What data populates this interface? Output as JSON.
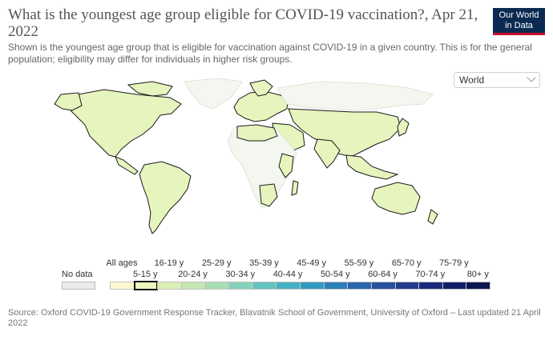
{
  "header": {
    "title": "What is the youngest age group eligible for COVID-19 vaccination?, Apr 21, 2022",
    "subtitle": "Shown is the youngest age group that is eligible for vaccination against COVID-19 in a given country. This is for the general population; eligibility may differ for individuals in higher risk groups."
  },
  "logo": {
    "line1": "Our World",
    "line2": "in Data"
  },
  "region_select": {
    "value": "World",
    "icon": "chevron-down-icon"
  },
  "legend": {
    "no_data": "No data",
    "items": [
      {
        "label": "All ages",
        "color": "#fbf8d0"
      },
      {
        "label": "5-15 y",
        "color": "#ebf5bc",
        "highlighted": true
      },
      {
        "label": "16-19 y",
        "color": "#dcefb4"
      },
      {
        "label": "20-24 y",
        "color": "#c6e7b3"
      },
      {
        "label": "25-29 y",
        "color": "#a9ddb3"
      },
      {
        "label": "30-34 y",
        "color": "#86d1ba"
      },
      {
        "label": "35-39 y",
        "color": "#63c3be"
      },
      {
        "label": "40-44 y",
        "color": "#45b1c2"
      },
      {
        "label": "45-49 y",
        "color": "#3299c0"
      },
      {
        "label": "50-54 y",
        "color": "#2d7fb8"
      },
      {
        "label": "55-59 y",
        "color": "#2b66ac"
      },
      {
        "label": "60-64 y",
        "color": "#28509e"
      },
      {
        "label": "65-70 y",
        "color": "#233c8e"
      },
      {
        "label": "70-74 y",
        "color": "#1b2b7b"
      },
      {
        "label": "75-79 y",
        "color": "#121f66"
      },
      {
        "label": "80+ y",
        "color": "#0b1850"
      }
    ]
  },
  "source": "Source: Oxford COVID-19 Government Response Tracker, Blavatnik School of Government, University of Oxford – Last updated 21 April 2022"
}
